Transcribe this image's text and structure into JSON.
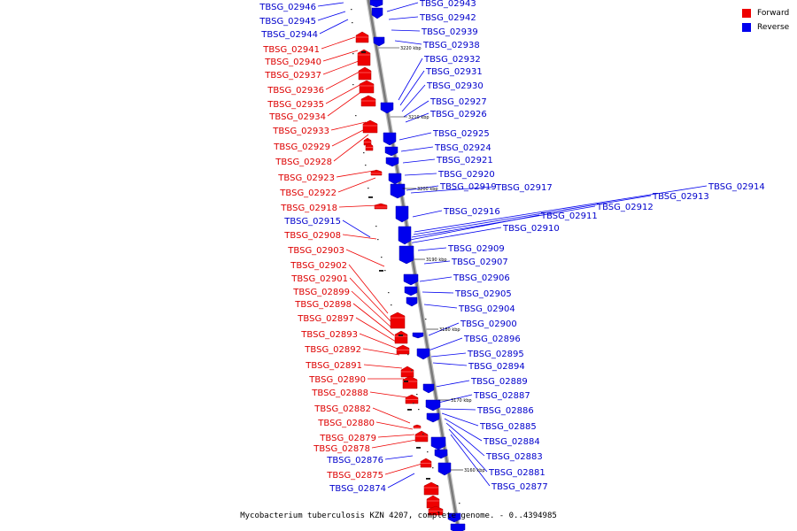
{
  "legend": {
    "forward_label": "Forward",
    "reverse_label": "Reverse",
    "forward_color": "#ee0000",
    "reverse_color": "#0000ee"
  },
  "caption": "Mycobacterium tuberculosis KZN 4207, complete genome. - 0..4394985",
  "scale_labels": [
    "3220 kbp",
    "3210 kbp",
    "3200 kbp",
    "3190 kbp",
    "3180 kbp",
    "3170 kbp",
    "3160 kbp"
  ],
  "forward_genes": [
    "TBSG_02941",
    "TBSG_02940",
    "TBSG_02937",
    "TBSG_02936",
    "TBSG_02935",
    "TBSG_02934",
    "TBSG_02933",
    "TBSG_02929",
    "TBSG_02928",
    "TBSG_02923",
    "TBSG_02922",
    "TBSG_02918",
    "TBSG_02908",
    "TBSG_02903",
    "TBSG_02902",
    "TBSG_02901",
    "TBSG_02899",
    "TBSG_02898",
    "TBSG_02897",
    "TBSG_02893",
    "TBSG_02892",
    "TBSG_02891",
    "TBSG_02890",
    "TBSG_02888",
    "TBSG_02882",
    "TBSG_02880",
    "TBSG_02879",
    "TBSG_02878",
    "TBSG_02875"
  ],
  "reverse_genes_left": [
    "TBSG_02946",
    "TBSG_02945",
    "TBSG_02944",
    "TBSG_02915",
    "TBSG_02876",
    "TBSG_02874"
  ],
  "reverse_genes_right": [
    "TBSG_02943",
    "TBSG_02942",
    "TBSG_02939",
    "TBSG_02938",
    "TBSG_02932",
    "TBSG_02931",
    "TBSG_02930",
    "TBSG_02927",
    "TBSG_02926",
    "TBSG_02925",
    "TBSG_02924",
    "TBSG_02921",
    "TBSG_02920",
    "TBSG_02919",
    "TBSG_02917",
    "TBSG_02916",
    "TBSG_02909",
    "TBSG_02907",
    "TBSG_02906",
    "TBSG_02905",
    "TBSG_02904",
    "TBSG_02900",
    "TBSG_02896",
    "TBSG_02895",
    "TBSG_02894",
    "TBSG_02889",
    "TBSG_02887",
    "TBSG_02886",
    "TBSG_02885",
    "TBSG_02884",
    "TBSG_02883",
    "TBSG_02881",
    "TBSG_02877"
  ],
  "reverse_genes_far": [
    "TBSG_02914",
    "TBSG_02913",
    "TBSG_02912",
    "TBSG_02911",
    "TBSG_02910"
  ]
}
